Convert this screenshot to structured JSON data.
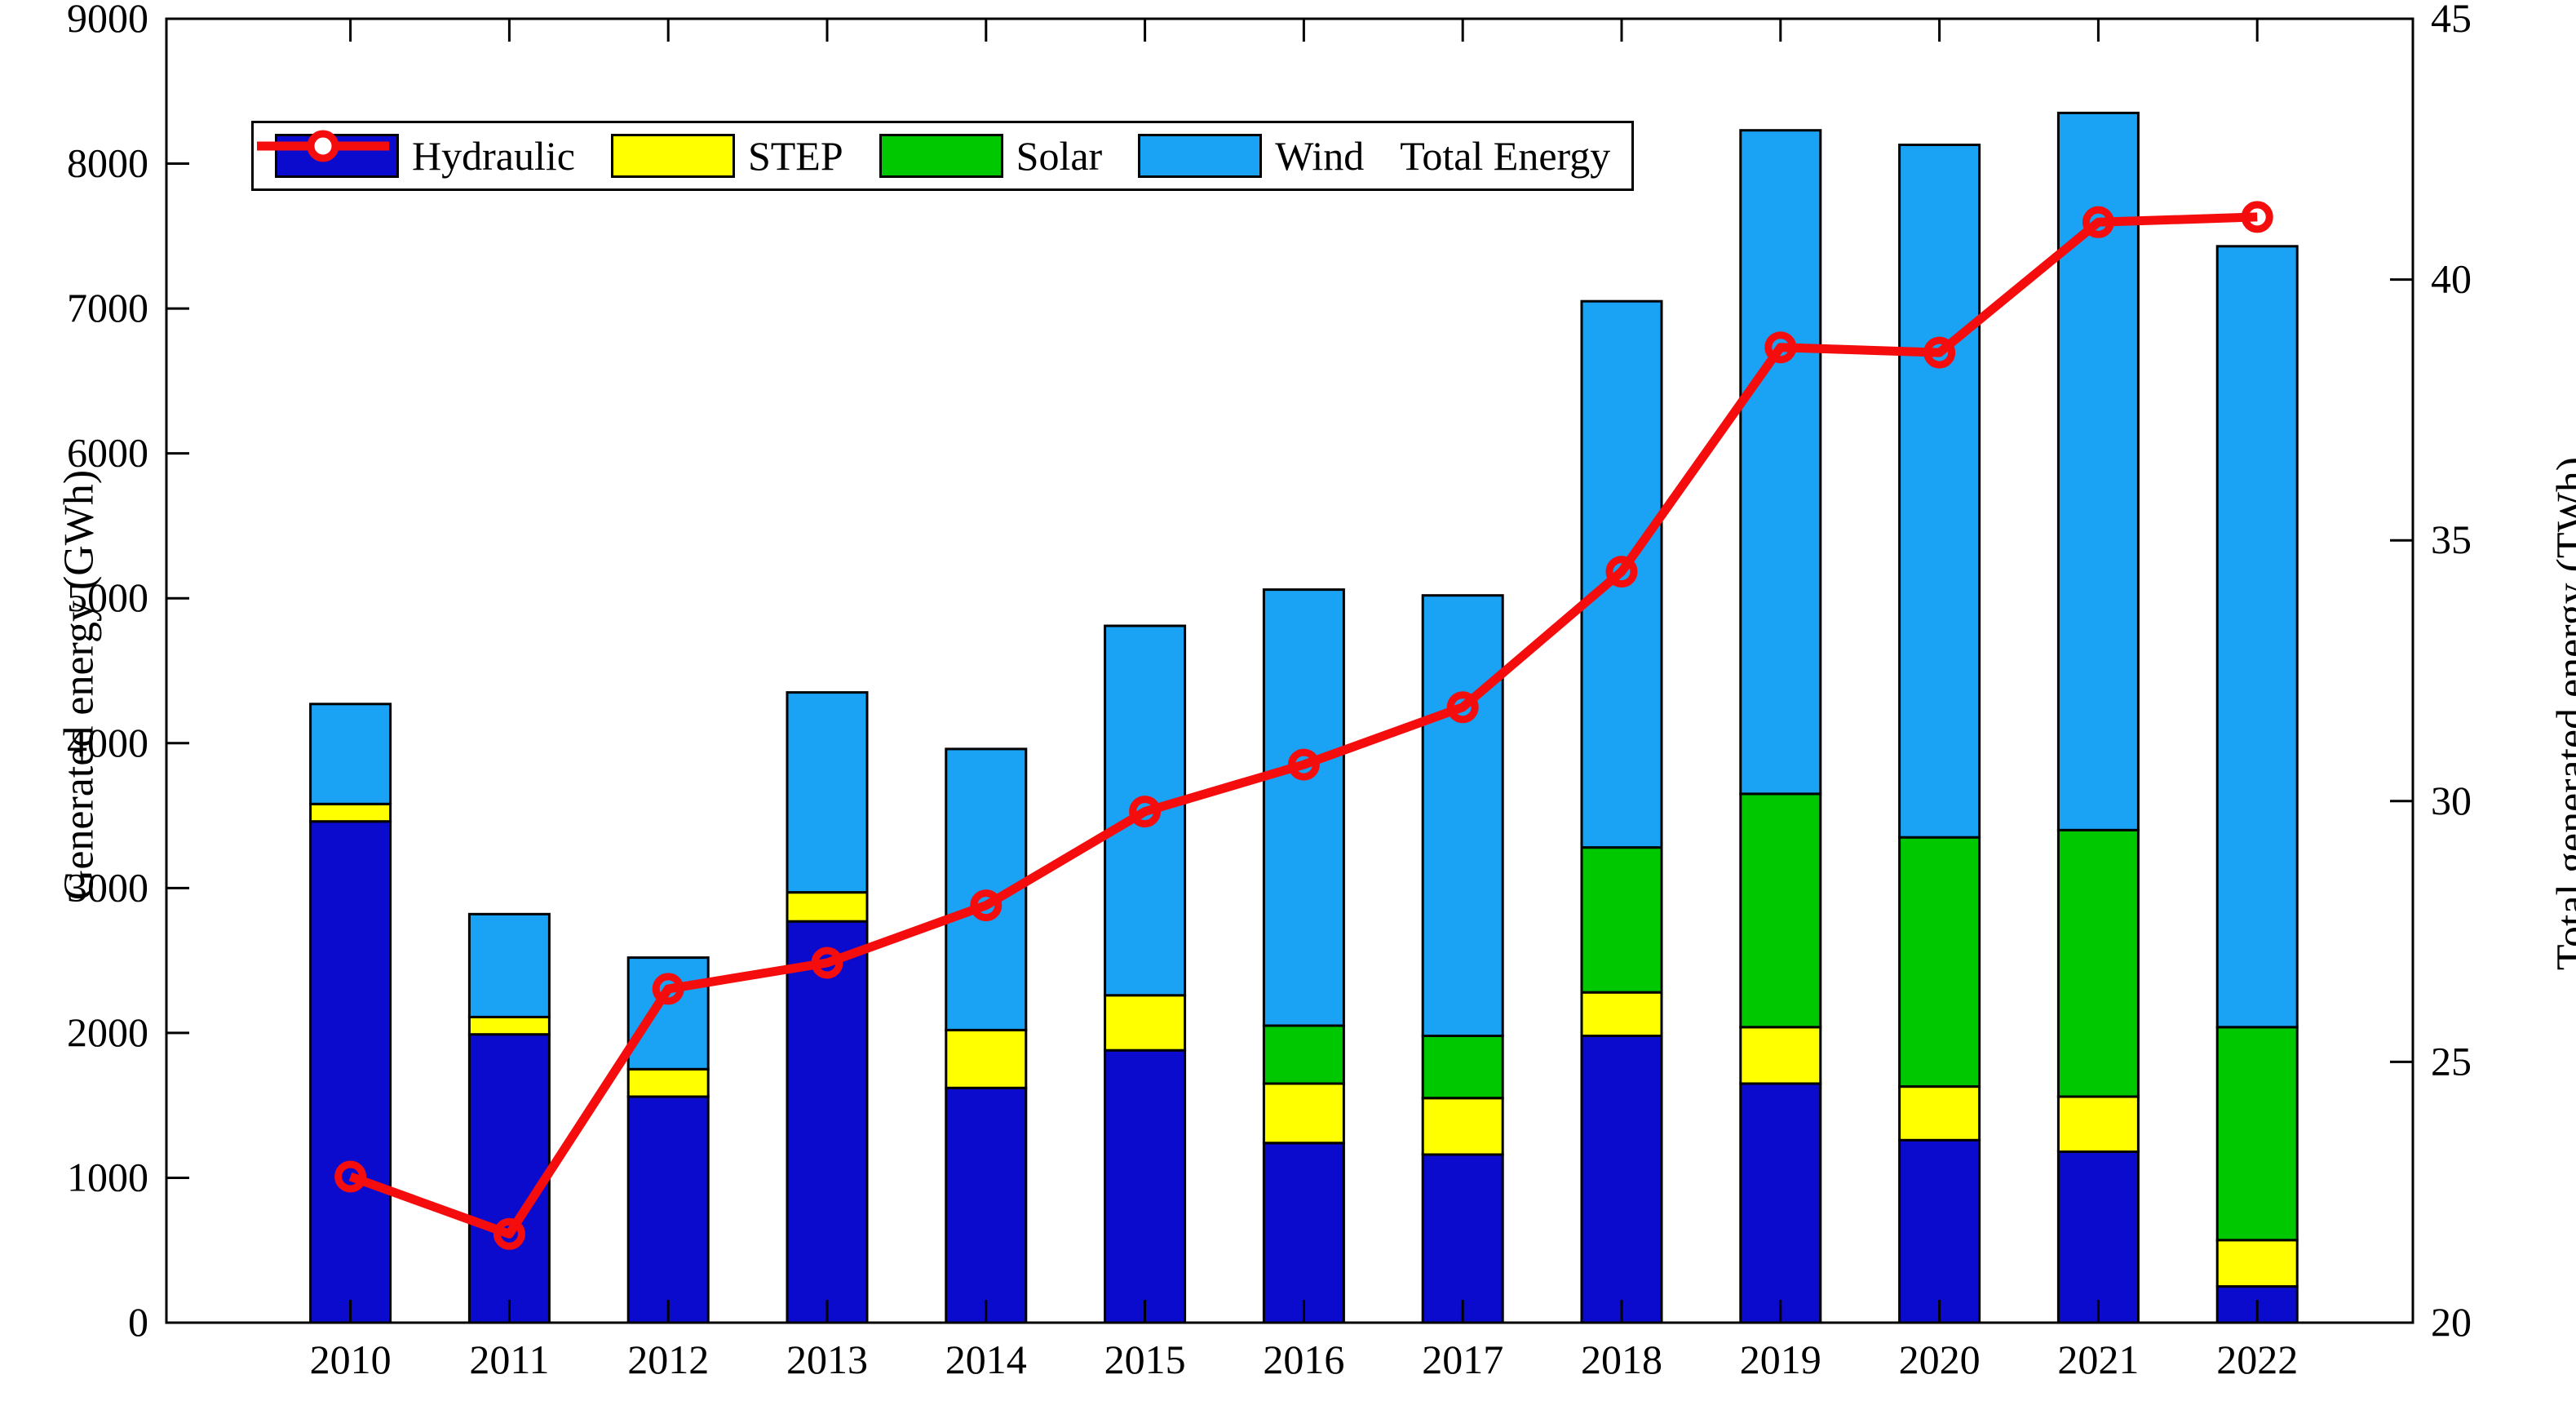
{
  "chart_data": {
    "type": "bar",
    "subtype": "stacked-bars-with-line-dual-axis",
    "title": "",
    "categories": [
      "2010",
      "2011",
      "2012",
      "2013",
      "2014",
      "2015",
      "2016",
      "2017",
      "2018",
      "2019",
      "2020",
      "2021",
      "2022"
    ],
    "stack_series": [
      {
        "name": "Hydraulic",
        "color": "#0B0BCD",
        "unit": "GWh",
        "values": [
          3460,
          1990,
          1560,
          2770,
          1620,
          1880,
          1240,
          1160,
          1980,
          1650,
          1260,
          1180,
          250
        ]
      },
      {
        "name": "STEP",
        "color": "#FFFF00",
        "unit": "GWh",
        "values": [
          120,
          120,
          190,
          200,
          400,
          380,
          410,
          390,
          300,
          390,
          370,
          380,
          320
        ]
      },
      {
        "name": "Solar",
        "color": "#00C800",
        "unit": "GWh",
        "values": [
          0,
          0,
          0,
          0,
          0,
          0,
          400,
          430,
          1000,
          1610,
          1720,
          1840,
          1470
        ]
      },
      {
        "name": "Wind",
        "color": "#1AA2F5",
        "unit": "GWh",
        "values": [
          690,
          710,
          770,
          1380,
          1940,
          2550,
          3010,
          3040,
          3770,
          4580,
          4780,
          4950,
          5390
        ]
      }
    ],
    "bar_totals_gwh": [
      4270,
      2820,
      2520,
      4350,
      3960,
      4810,
      5060,
      5020,
      7050,
      8230,
      8130,
      8350,
      7430
    ],
    "line_series": {
      "name": "Total Energy",
      "color": "#F50D0D",
      "unit": "TWh",
      "axis": "right",
      "marker": "open-circle",
      "values": [
        22.8,
        21.7,
        26.4,
        26.9,
        28.0,
        29.8,
        30.7,
        31.8,
        34.4,
        38.7,
        38.6,
        41.1,
        41.2
      ]
    },
    "left_axis": {
      "label": "Generated energy (GWh)",
      "min": 0,
      "max": 9000,
      "tick_step": 1000
    },
    "right_axis": {
      "label": "Total generated energy (TWh)",
      "min": 20,
      "max": 45,
      "tick_step": 5
    },
    "x_axis": {
      "tick_labels": [
        "2010",
        "2011",
        "2012",
        "2013",
        "2014",
        "2015",
        "2016",
        "2017",
        "2018",
        "2019",
        "2020",
        "2021",
        "2022"
      ]
    },
    "legend_position": "inside-top-left",
    "grid": false,
    "background_color": "#FFFFFF",
    "axis_color": "#000000"
  }
}
